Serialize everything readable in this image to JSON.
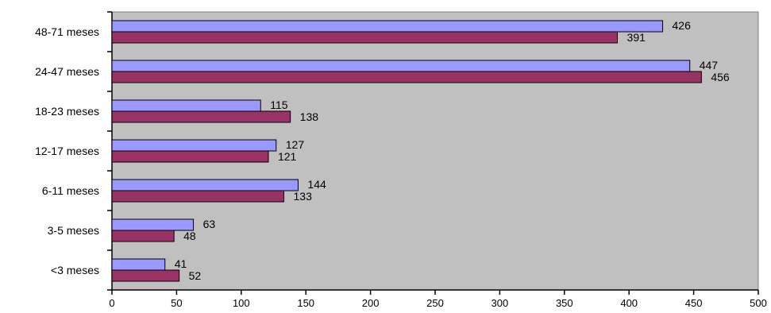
{
  "chart_data": {
    "type": "bar",
    "orientation": "horizontal",
    "categories": [
      "48-71 meses",
      "24-47 meses",
      "18-23 meses",
      "12-17 meses",
      "6-11 meses",
      "3-5 meses",
      "<3 meses"
    ],
    "series": [
      {
        "values": [
          426,
          447,
          115,
          127,
          144,
          63,
          41
        ],
        "color": "#9999ff"
      },
      {
        "values": [
          391,
          456,
          138,
          121,
          133,
          48,
          52
        ],
        "color": "#993366"
      }
    ],
    "xlim": [
      0,
      500
    ],
    "xticks": [
      0,
      50,
      100,
      150,
      200,
      250,
      300,
      350,
      400,
      450,
      500
    ],
    "xtick_labels": [
      "0",
      "50",
      "100",
      "150",
      "200",
      "250",
      "300",
      "350",
      "400",
      "450",
      "500"
    ],
    "plot_background": "#c0c0c0",
    "gridlines": false,
    "legend": "none"
  }
}
